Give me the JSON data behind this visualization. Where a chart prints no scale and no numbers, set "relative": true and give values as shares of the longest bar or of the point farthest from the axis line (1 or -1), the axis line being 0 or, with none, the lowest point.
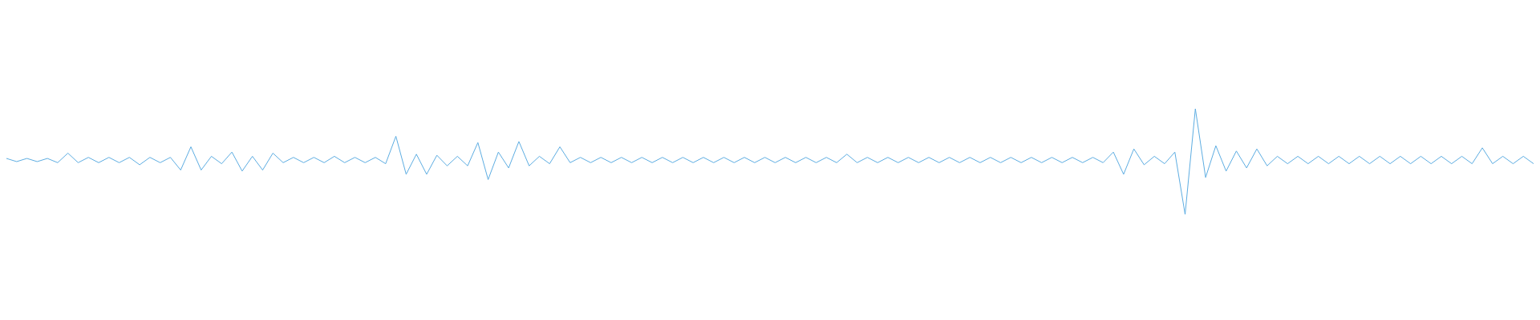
{
  "chart_data": {
    "type": "line",
    "relative": true,
    "categories": [
      null,
      null,
      null,
      null,
      null,
      null,
      null,
      null,
      null,
      null,
      null,
      null,
      null,
      null,
      null,
      null,
      null,
      null,
      null,
      null,
      null,
      null,
      null,
      null,
      null,
      null,
      null,
      null,
      null,
      null,
      null,
      null,
      null,
      null,
      null,
      null,
      null,
      null,
      null,
      null,
      null,
      null,
      null,
      null,
      null,
      null,
      null,
      null,
      null,
      null,
      null,
      null,
      null,
      null,
      null,
      null,
      null,
      null,
      null,
      null,
      null,
      null,
      null,
      null,
      null,
      null,
      null,
      null,
      null,
      null,
      null,
      null,
      null,
      null,
      null,
      null,
      null,
      null,
      null,
      null,
      null,
      null,
      null,
      null,
      null,
      null,
      null,
      null,
      null,
      null,
      null,
      null,
      null,
      null,
      null,
      null,
      null,
      null,
      null,
      null,
      null,
      null,
      null,
      null,
      null,
      null,
      null,
      null,
      null,
      null,
      null,
      null,
      null,
      null,
      null,
      null,
      null,
      null,
      null,
      null,
      null,
      null,
      null,
      null,
      null,
      null,
      null,
      null,
      null,
      null,
      null,
      null,
      null,
      null,
      null,
      null,
      null,
      null,
      null,
      null,
      null,
      null,
      null,
      null,
      null,
      null,
      null,
      null,
      null,
      null
    ],
    "series": [
      {
        "color": "#5dade2",
        "values": [
          0.53,
          0.5,
          0.53,
          0.5,
          0.53,
          0.49,
          0.58,
          0.49,
          0.54,
          0.49,
          0.54,
          0.49,
          0.54,
          0.47,
          0.54,
          0.49,
          0.54,
          0.42,
          0.64,
          0.42,
          0.55,
          0.48,
          0.59,
          0.41,
          0.55,
          0.42,
          0.58,
          0.49,
          0.54,
          0.49,
          0.54,
          0.49,
          0.55,
          0.49,
          0.54,
          0.49,
          0.54,
          0.48,
          0.74,
          0.38,
          0.57,
          0.38,
          0.56,
          0.46,
          0.55,
          0.46,
          0.68,
          0.33,
          0.59,
          0.44,
          0.69,
          0.46,
          0.55,
          0.48,
          0.64,
          0.49,
          0.54,
          0.49,
          0.54,
          0.49,
          0.54,
          0.49,
          0.54,
          0.49,
          0.54,
          0.49,
          0.54,
          0.49,
          0.54,
          0.49,
          0.54,
          0.49,
          0.54,
          0.49,
          0.54,
          0.49,
          0.54,
          0.49,
          0.54,
          0.49,
          0.54,
          0.49,
          0.57,
          0.49,
          0.54,
          0.49,
          0.54,
          0.49,
          0.54,
          0.49,
          0.54,
          0.49,
          0.54,
          0.49,
          0.54,
          0.49,
          0.54,
          0.49,
          0.54,
          0.49,
          0.54,
          0.49,
          0.54,
          0.49,
          0.54,
          0.49,
          0.54,
          0.49,
          0.59,
          0.38,
          0.62,
          0.47,
          0.55,
          0.48,
          0.59,
          0,
          1,
          0.35,
          0.65,
          0.41,
          0.6,
          0.44,
          0.62,
          0.46,
          0.55,
          0.48,
          0.55,
          0.48,
          0.55,
          0.48,
          0.55,
          0.48,
          0.55,
          0.48,
          0.55,
          0.48,
          0.55,
          0.48,
          0.55,
          0.48,
          0.55,
          0.48,
          0.55,
          0.48,
          0.63,
          0.48,
          0.55,
          0.48,
          0.55,
          0.48
        ]
      }
    ]
  }
}
